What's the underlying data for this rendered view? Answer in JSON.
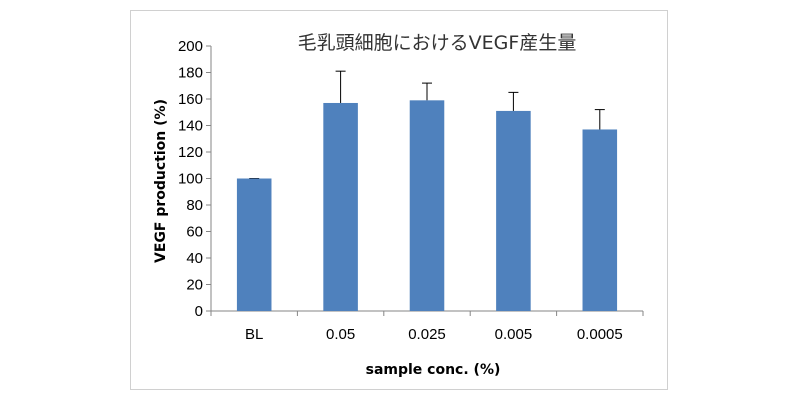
{
  "chart_data": {
    "type": "bar",
    "title": "毛乳頭細胞におけるVEGF産生量",
    "xlabel": "sample conc. (%)",
    "ylabel": "VEGF production (%)",
    "categories": [
      "BL",
      "0.05",
      "0.025",
      "0.005",
      "0.0005"
    ],
    "values": [
      100,
      157,
      159,
      151,
      137
    ],
    "error_bars": [
      0,
      24,
      13,
      14,
      15
    ],
    "ylim": [
      0,
      200
    ],
    "yticks": [
      0,
      20,
      40,
      60,
      80,
      100,
      120,
      140,
      160,
      180,
      200
    ],
    "grid": false,
    "legend": "none",
    "bar_color": "#4f81bd"
  }
}
